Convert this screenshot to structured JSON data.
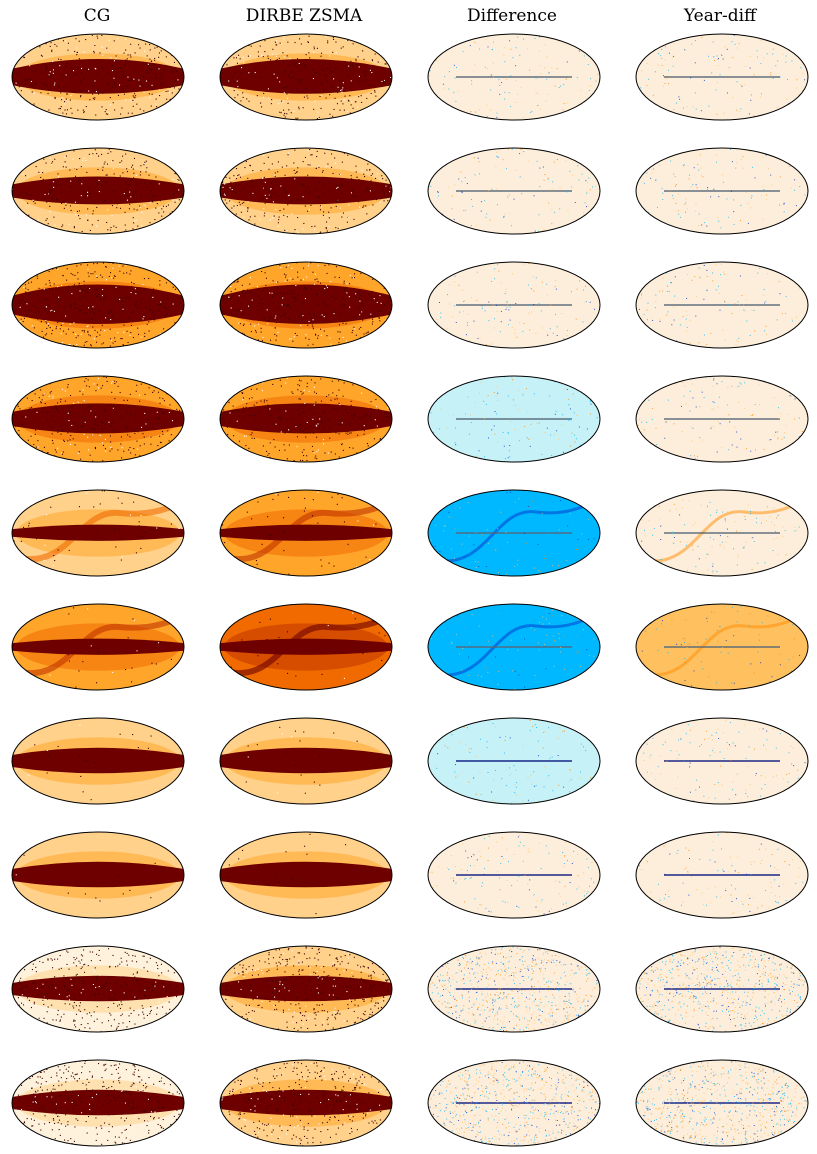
{
  "figure": {
    "column_titles": [
      "CG",
      "DIRBE ZSMA",
      "Difference",
      "Year-diff"
    ],
    "row_count": 10,
    "projection": "mollweide",
    "colormaps": {
      "intensity": [
        "#fff2dc",
        "#ffd18a",
        "#ffa62a",
        "#f06a00",
        "#c23400",
        "#6e0000"
      ],
      "difference": [
        "#0033cc",
        "#00b8ff",
        "#c6f1f7",
        "#fdeedb",
        "#ffc060",
        "#ff8c00",
        "#8a0000"
      ]
    },
    "colors": {
      "outline": "#000000",
      "background": "#ffffff"
    }
  }
}
